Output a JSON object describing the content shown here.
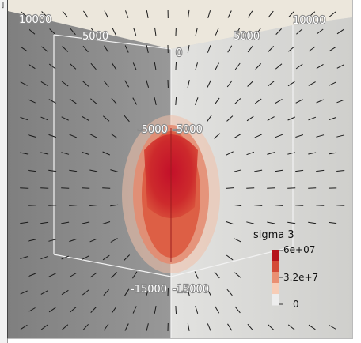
{
  "frame_glyph": "]",
  "viewer": {
    "axis_labels": {
      "top_left_outer": "10000",
      "top_left_inner": "5000",
      "top_center": "0",
      "top_right_inner": "5000",
      "top_right_outer": "10000",
      "mid_left": "-5000",
      "mid_right": "-5000",
      "bottom_left": "-15000",
      "bottom_right": "-15000"
    },
    "colors": {
      "left_face": "#8e8e8e",
      "right_face": "#dcdcda",
      "top_face": "#ece7dc",
      "plume_outer": "#f0c0a8",
      "plume_mid": "#e48a6e",
      "plume_core": "#c81e2c"
    }
  },
  "legend": {
    "title": "sigma 3",
    "max_label": "6e+07",
    "mid_label": "3.2e+7",
    "min_label": "0",
    "colors": [
      "#b5121b",
      "#d44a37",
      "#ea8f72",
      "#f7cdb7",
      "#ededed"
    ]
  }
}
